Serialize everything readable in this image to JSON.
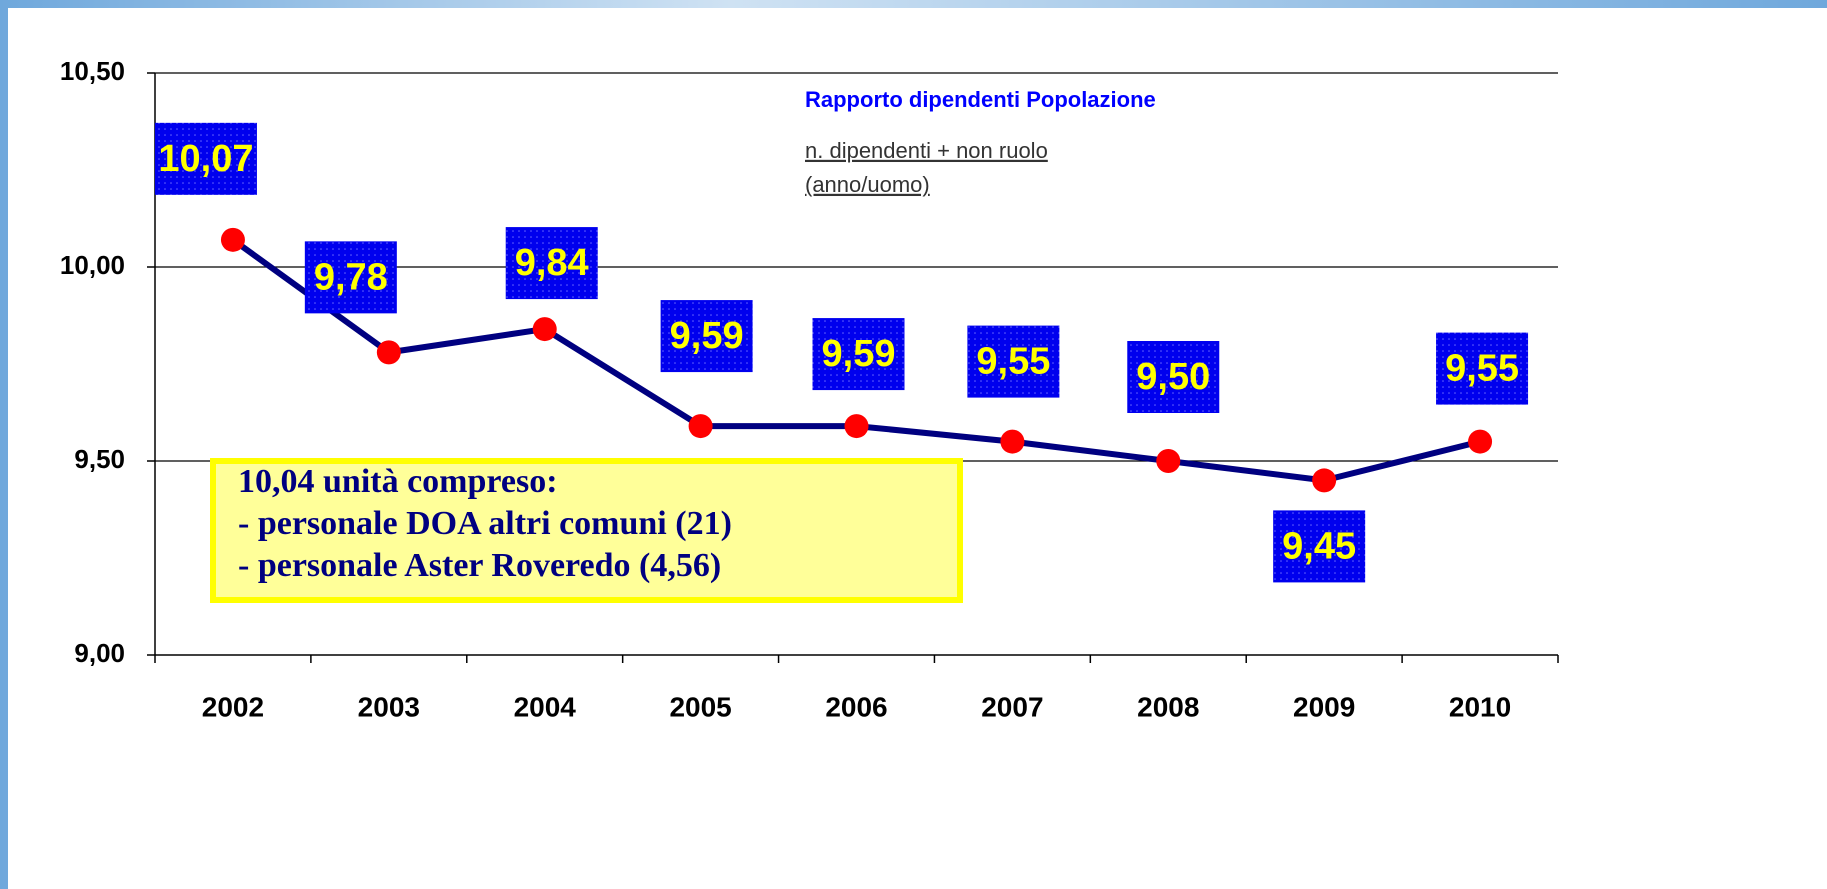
{
  "chart_data": {
    "type": "line",
    "title": "Rapporto dipendenti Popolazione",
    "subtitle": [
      "n. dipendenti + non ruolo",
      "(anno/uomo)"
    ],
    "annotation": [
      "10,04 unità compreso:",
      "- personale DOA altri comuni (21)",
      "- personale Aster Roveredo (4,56)"
    ],
    "categories": [
      "2002",
      "2003",
      "2004",
      "2005",
      "2006",
      "2007",
      "2008",
      "2009",
      "2010"
    ],
    "values": [
      10.07,
      9.78,
      9.84,
      9.59,
      9.59,
      9.55,
      9.5,
      9.45,
      9.55
    ],
    "value_labels": [
      "10,07",
      "9,78",
      "9,84",
      "9,59",
      "9,59",
      "9,55",
      "9,50",
      "9,45",
      "9,55"
    ],
    "color": "#000080",
    "marker_color": "#ff0000",
    "ylim": [
      9,
      10.5
    ],
    "yticks": [
      {
        "value": 9,
        "label": "9,00"
      },
      {
        "value": 9.5,
        "label": "9,50"
      },
      {
        "value": 10,
        "label": "10,00"
      },
      {
        "value": 10.5,
        "label": "10,50"
      }
    ],
    "grid": true
  }
}
